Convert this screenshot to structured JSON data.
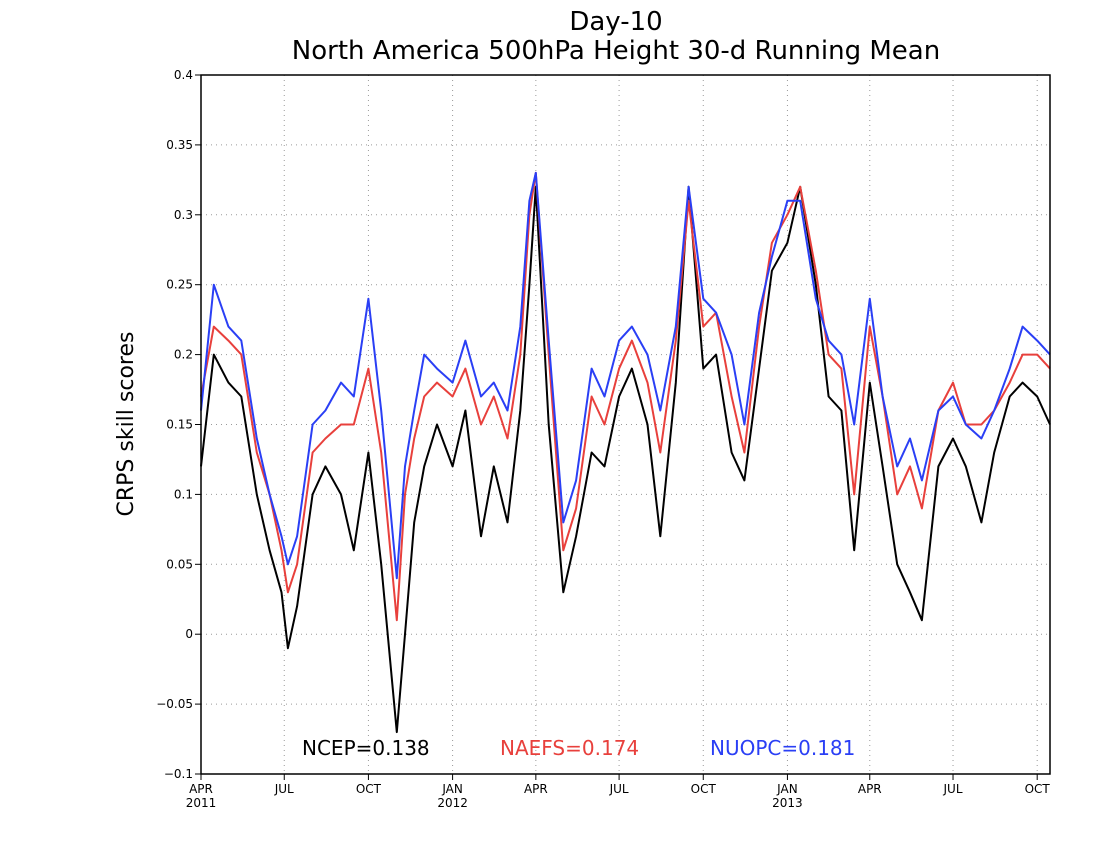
{
  "chart_data": {
    "type": "line",
    "title_line1": "Day-10",
    "title_line2": "North America 500hPa Height 30-d Running Mean",
    "xlabel": "",
    "ylabel": "CRPS skill scores",
    "ylim": [
      -0.1,
      0.4
    ],
    "yticks": [
      -0.1,
      -0.05,
      0,
      0.05,
      0.1,
      0.15,
      0.2,
      0.25,
      0.3,
      0.35,
      0.4
    ],
    "ytick_labels": [
      "−0.1",
      "−0.05",
      "0",
      "0.05",
      "0.1",
      "0.15",
      "0.2",
      "0.25",
      "0.3",
      "0.35",
      "0.4"
    ],
    "xlim": [
      "2011-04-01",
      "2013-10-15"
    ],
    "xticks": [
      {
        "date": "2011-04-01",
        "label": "APR",
        "year": "2011"
      },
      {
        "date": "2011-07-01",
        "label": "JUL",
        "year": ""
      },
      {
        "date": "2011-10-01",
        "label": "OCT",
        "year": ""
      },
      {
        "date": "2012-01-01",
        "label": "JAN",
        "year": "2012"
      },
      {
        "date": "2012-04-01",
        "label": "APR",
        "year": ""
      },
      {
        "date": "2012-07-01",
        "label": "JUL",
        "year": ""
      },
      {
        "date": "2012-10-01",
        "label": "OCT",
        "year": ""
      },
      {
        "date": "2013-01-01",
        "label": "JAN",
        "year": "2013"
      },
      {
        "date": "2013-04-01",
        "label": "APR",
        "year": ""
      },
      {
        "date": "2013-07-01",
        "label": "JUL",
        "year": ""
      },
      {
        "date": "2013-10-01",
        "label": "OCT",
        "year": ""
      }
    ],
    "grid": true,
    "legend_placement": "bottom",
    "series": [
      {
        "name": "NCEP",
        "legend_label": "NCEP=0.138",
        "color": "#000000",
        "x": [
          "2011-04-01",
          "2011-04-15",
          "2011-05-01",
          "2011-05-15",
          "2011-06-01",
          "2011-06-15",
          "2011-06-28",
          "2011-07-05",
          "2011-07-15",
          "2011-08-01",
          "2011-08-15",
          "2011-09-01",
          "2011-09-15",
          "2011-10-01",
          "2011-10-15",
          "2011-11-01",
          "2011-11-10",
          "2011-11-20",
          "2011-12-01",
          "2011-12-15",
          "2012-01-01",
          "2012-01-15",
          "2012-02-01",
          "2012-02-15",
          "2012-03-01",
          "2012-03-15",
          "2012-03-25",
          "2012-04-01",
          "2012-04-15",
          "2012-05-01",
          "2012-05-15",
          "2012-06-01",
          "2012-06-15",
          "2012-07-01",
          "2012-07-15",
          "2012-08-01",
          "2012-08-15",
          "2012-09-01",
          "2012-09-15",
          "2012-10-01",
          "2012-10-15",
          "2012-11-01",
          "2012-11-15",
          "2012-12-01",
          "2012-12-15",
          "2013-01-01",
          "2013-01-15",
          "2013-02-01",
          "2013-02-15",
          "2013-03-01",
          "2013-03-15",
          "2013-04-01",
          "2013-04-15",
          "2013-05-01",
          "2013-05-15",
          "2013-05-28",
          "2013-06-15",
          "2013-07-01",
          "2013-07-15",
          "2013-08-01",
          "2013-08-15",
          "2013-09-01",
          "2013-09-15",
          "2013-10-01",
          "2013-10-15"
        ],
        "y": [
          0.12,
          0.2,
          0.18,
          0.17,
          0.1,
          0.06,
          0.03,
          -0.01,
          0.02,
          0.1,
          0.12,
          0.1,
          0.06,
          0.13,
          0.05,
          -0.07,
          0.0,
          0.08,
          0.12,
          0.15,
          0.12,
          0.16,
          0.07,
          0.12,
          0.08,
          0.16,
          0.25,
          0.32,
          0.15,
          0.03,
          0.07,
          0.13,
          0.12,
          0.17,
          0.19,
          0.15,
          0.07,
          0.18,
          0.32,
          0.19,
          0.2,
          0.13,
          0.11,
          0.19,
          0.26,
          0.28,
          0.32,
          0.25,
          0.17,
          0.16,
          0.06,
          0.18,
          0.12,
          0.05,
          0.03,
          0.01,
          0.12,
          0.14,
          0.12,
          0.08,
          0.13,
          0.17,
          0.18,
          0.17,
          0.15
        ]
      },
      {
        "name": "NAEFS",
        "legend_label": "NAEFS=0.174",
        "color": "#e8403c",
        "x": [
          "2011-04-01",
          "2011-04-15",
          "2011-05-01",
          "2011-05-15",
          "2011-06-01",
          "2011-06-15",
          "2011-06-28",
          "2011-07-05",
          "2011-07-15",
          "2011-08-01",
          "2011-08-15",
          "2011-09-01",
          "2011-09-15",
          "2011-10-01",
          "2011-10-15",
          "2011-11-01",
          "2011-11-10",
          "2011-11-20",
          "2011-12-01",
          "2011-12-15",
          "2012-01-01",
          "2012-01-15",
          "2012-02-01",
          "2012-02-15",
          "2012-03-01",
          "2012-03-15",
          "2012-03-25",
          "2012-04-01",
          "2012-04-15",
          "2012-05-01",
          "2012-05-15",
          "2012-06-01",
          "2012-06-15",
          "2012-07-01",
          "2012-07-15",
          "2012-08-01",
          "2012-08-15",
          "2012-09-01",
          "2012-09-15",
          "2012-10-01",
          "2012-10-15",
          "2012-11-01",
          "2012-11-15",
          "2012-12-01",
          "2012-12-15",
          "2013-01-01",
          "2013-01-15",
          "2013-02-01",
          "2013-02-15",
          "2013-03-01",
          "2013-03-15",
          "2013-04-01",
          "2013-04-15",
          "2013-05-01",
          "2013-05-15",
          "2013-05-28",
          "2013-06-15",
          "2013-07-01",
          "2013-07-15",
          "2013-08-01",
          "2013-08-15",
          "2013-09-01",
          "2013-09-15",
          "2013-10-01",
          "2013-10-15"
        ],
        "y": [
          0.17,
          0.22,
          0.21,
          0.2,
          0.13,
          0.1,
          0.06,
          0.03,
          0.05,
          0.13,
          0.14,
          0.15,
          0.15,
          0.19,
          0.13,
          0.01,
          0.1,
          0.14,
          0.17,
          0.18,
          0.17,
          0.19,
          0.15,
          0.17,
          0.14,
          0.2,
          0.3,
          0.33,
          0.2,
          0.06,
          0.09,
          0.17,
          0.15,
          0.19,
          0.21,
          0.18,
          0.13,
          0.21,
          0.31,
          0.22,
          0.23,
          0.17,
          0.13,
          0.22,
          0.28,
          0.3,
          0.32,
          0.26,
          0.2,
          0.19,
          0.1,
          0.22,
          0.17,
          0.1,
          0.12,
          0.09,
          0.16,
          0.18,
          0.15,
          0.15,
          0.16,
          0.18,
          0.2,
          0.2,
          0.19
        ]
      },
      {
        "name": "NUOPC",
        "legend_label": "NUOPC=0.181",
        "color": "#2a3ff5",
        "x": [
          "2011-04-01",
          "2011-04-15",
          "2011-05-01",
          "2011-05-15",
          "2011-06-01",
          "2011-06-15",
          "2011-06-28",
          "2011-07-05",
          "2011-07-15",
          "2011-08-01",
          "2011-08-15",
          "2011-09-01",
          "2011-09-15",
          "2011-10-01",
          "2011-10-15",
          "2011-11-01",
          "2011-11-10",
          "2011-11-20",
          "2011-12-01",
          "2011-12-15",
          "2012-01-01",
          "2012-01-15",
          "2012-02-01",
          "2012-02-15",
          "2012-03-01",
          "2012-03-15",
          "2012-03-25",
          "2012-04-01",
          "2012-04-15",
          "2012-05-01",
          "2012-05-15",
          "2012-06-01",
          "2012-06-15",
          "2012-07-01",
          "2012-07-15",
          "2012-08-01",
          "2012-08-15",
          "2012-09-01",
          "2012-09-15",
          "2012-10-01",
          "2012-10-15",
          "2012-11-01",
          "2012-11-15",
          "2012-12-01",
          "2012-12-15",
          "2013-01-01",
          "2013-01-15",
          "2013-02-01",
          "2013-02-15",
          "2013-03-01",
          "2013-03-15",
          "2013-04-01",
          "2013-04-15",
          "2013-05-01",
          "2013-05-15",
          "2013-05-28",
          "2013-06-15",
          "2013-07-01",
          "2013-07-15",
          "2013-08-01",
          "2013-08-15",
          "2013-09-01",
          "2013-09-15",
          "2013-10-01",
          "2013-10-15"
        ],
        "y": [
          0.16,
          0.25,
          0.22,
          0.21,
          0.14,
          0.1,
          0.07,
          0.05,
          0.07,
          0.15,
          0.16,
          0.18,
          0.17,
          0.24,
          0.16,
          0.04,
          0.12,
          0.16,
          0.2,
          0.19,
          0.18,
          0.21,
          0.17,
          0.18,
          0.16,
          0.22,
          0.31,
          0.33,
          0.21,
          0.08,
          0.11,
          0.19,
          0.17,
          0.21,
          0.22,
          0.2,
          0.16,
          0.22,
          0.32,
          0.24,
          0.23,
          0.2,
          0.15,
          0.23,
          0.27,
          0.31,
          0.31,
          0.24,
          0.21,
          0.2,
          0.15,
          0.24,
          0.17,
          0.12,
          0.14,
          0.11,
          0.16,
          0.17,
          0.15,
          0.14,
          0.16,
          0.19,
          0.22,
          0.21,
          0.2
        ]
      }
    ]
  }
}
